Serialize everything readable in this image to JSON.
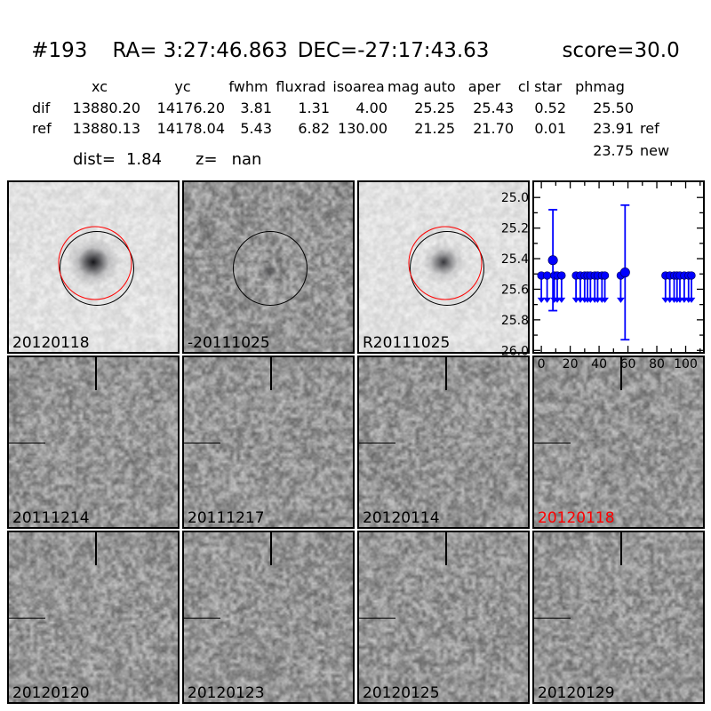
{
  "header": {
    "id": "#193",
    "ra": "RA= 3:27:46.863",
    "dec": "DEC=-27:17:43.63",
    "score": "score=30.0"
  },
  "photometry_table": {
    "columns": [
      "xc",
      "yc",
      "fwhm",
      "fluxrad",
      "isoarea",
      "mag auto",
      "aper",
      "cl star",
      "phmag"
    ],
    "rows": [
      {
        "label": "dif",
        "xc": "13880.20",
        "yc": "14176.20",
        "fwhm": "3.81",
        "fluxrad": "1.31",
        "isoarea": "4.00",
        "mag_auto": "25.25",
        "aper": "25.43",
        "cl_star": "0.52",
        "phmag": "25.50",
        "suffix": ""
      },
      {
        "label": "ref",
        "xc": "13880.13",
        "yc": "14178.04",
        "fwhm": "5.43",
        "fluxrad": "6.82",
        "isoarea": "130.00",
        "mag_auto": "21.25",
        "aper": "21.70",
        "cl_star": "0.01",
        "phmag": "23.91",
        "suffix": "ref"
      }
    ],
    "extra": {
      "phmag": "23.75",
      "suffix": "new"
    },
    "dist_label": "dist=",
    "dist_value": "1.84",
    "z_label": "z=",
    "z_value": "nan"
  },
  "stamps": [
    {
      "label": "20120118",
      "kind": "new",
      "label_color": "#000000"
    },
    {
      "label": "-20111025",
      "kind": "sub",
      "label_color": "#000000"
    },
    {
      "label": "R20111025",
      "kind": "ref",
      "label_color": "#000000"
    },
    {
      "label": "20111214",
      "kind": "dif",
      "label_color": "#000000"
    },
    {
      "label": "20111217",
      "kind": "dif",
      "label_color": "#000000"
    },
    {
      "label": "20120114",
      "kind": "dif",
      "label_color": "#000000"
    },
    {
      "label": "20120118",
      "kind": "dif",
      "label_color": "#ff0000"
    },
    {
      "label": "20120120",
      "kind": "dif",
      "label_color": "#000000"
    },
    {
      "label": "20120123",
      "kind": "dif",
      "label_color": "#000000"
    },
    {
      "label": "20120125",
      "kind": "dif",
      "label_color": "#000000"
    },
    {
      "label": "20120129",
      "kind": "dif",
      "label_color": "#000000"
    }
  ],
  "chart_data": {
    "type": "scatter",
    "title": "",
    "xlabel": "",
    "ylabel": "",
    "y_axis_inverted_magnitudes": true,
    "xlim": [
      -5,
      112
    ],
    "ylim": [
      24.9,
      26.01
    ],
    "x_ticks": [
      0,
      20,
      40,
      60,
      80,
      100
    ],
    "x_tick_labels": [
      "0",
      "20",
      "40",
      "60",
      "80",
      "100"
    ],
    "x_minor_ticks": [
      10,
      30,
      50,
      70,
      90,
      110
    ],
    "y_ticks": [
      25.0,
      25.2,
      25.4,
      25.6,
      25.8,
      26.0
    ],
    "y_tick_labels": [
      "25.0",
      "25.2",
      "25.4",
      "25.6",
      "25.8",
      "26.0"
    ],
    "y_minor_ticks": [
      25.1,
      25.3,
      25.5,
      25.7,
      25.9
    ],
    "marker_color": "#0000ff",
    "upper_limits": {
      "y": 25.51,
      "arrow_to": 25.69,
      "x": [
        0,
        4,
        9,
        11,
        14,
        24,
        27,
        30,
        32,
        34,
        37,
        39,
        42,
        44,
        55,
        86,
        89,
        92,
        94,
        96,
        99,
        102,
        104
      ]
    },
    "detections": [
      {
        "x": 8,
        "y": 25.41,
        "yerr": 0.33
      },
      {
        "x": 58,
        "y": 25.49,
        "yerr": 0.44
      }
    ]
  },
  "colors": {
    "marker": "#0000ff",
    "aperture_red": "#ff0000",
    "aperture_black": "#000000",
    "highlight_label": "#ff0000"
  }
}
